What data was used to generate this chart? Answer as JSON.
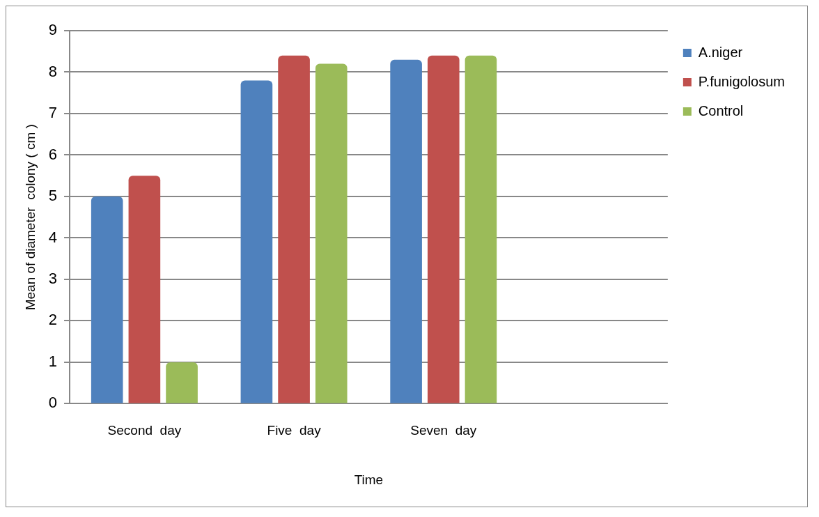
{
  "chart_data": {
    "type": "bar",
    "xlabel": "Time",
    "ylabel": "Mean of diameter  colony ( cm )",
    "categories": [
      "Second  day",
      "Five  day",
      "Seven  day",
      null
    ],
    "series": [
      {
        "name": "A.niger",
        "color": "#4f81bd",
        "values": [
          5.0,
          7.8,
          8.3,
          null
        ]
      },
      {
        "name": "P.funigolosum",
        "color": "#c0504d",
        "values": [
          5.5,
          8.4,
          8.4,
          null
        ]
      },
      {
        "name": "Control",
        "color": "#9bbb59",
        "values": [
          1.0,
          8.2,
          8.4,
          null
        ]
      }
    ],
    "ylim": [
      0,
      9
    ],
    "yticks": [
      0,
      1,
      2,
      3,
      4,
      5,
      6,
      7,
      8,
      9
    ],
    "grid": "y",
    "legend": "right"
  }
}
